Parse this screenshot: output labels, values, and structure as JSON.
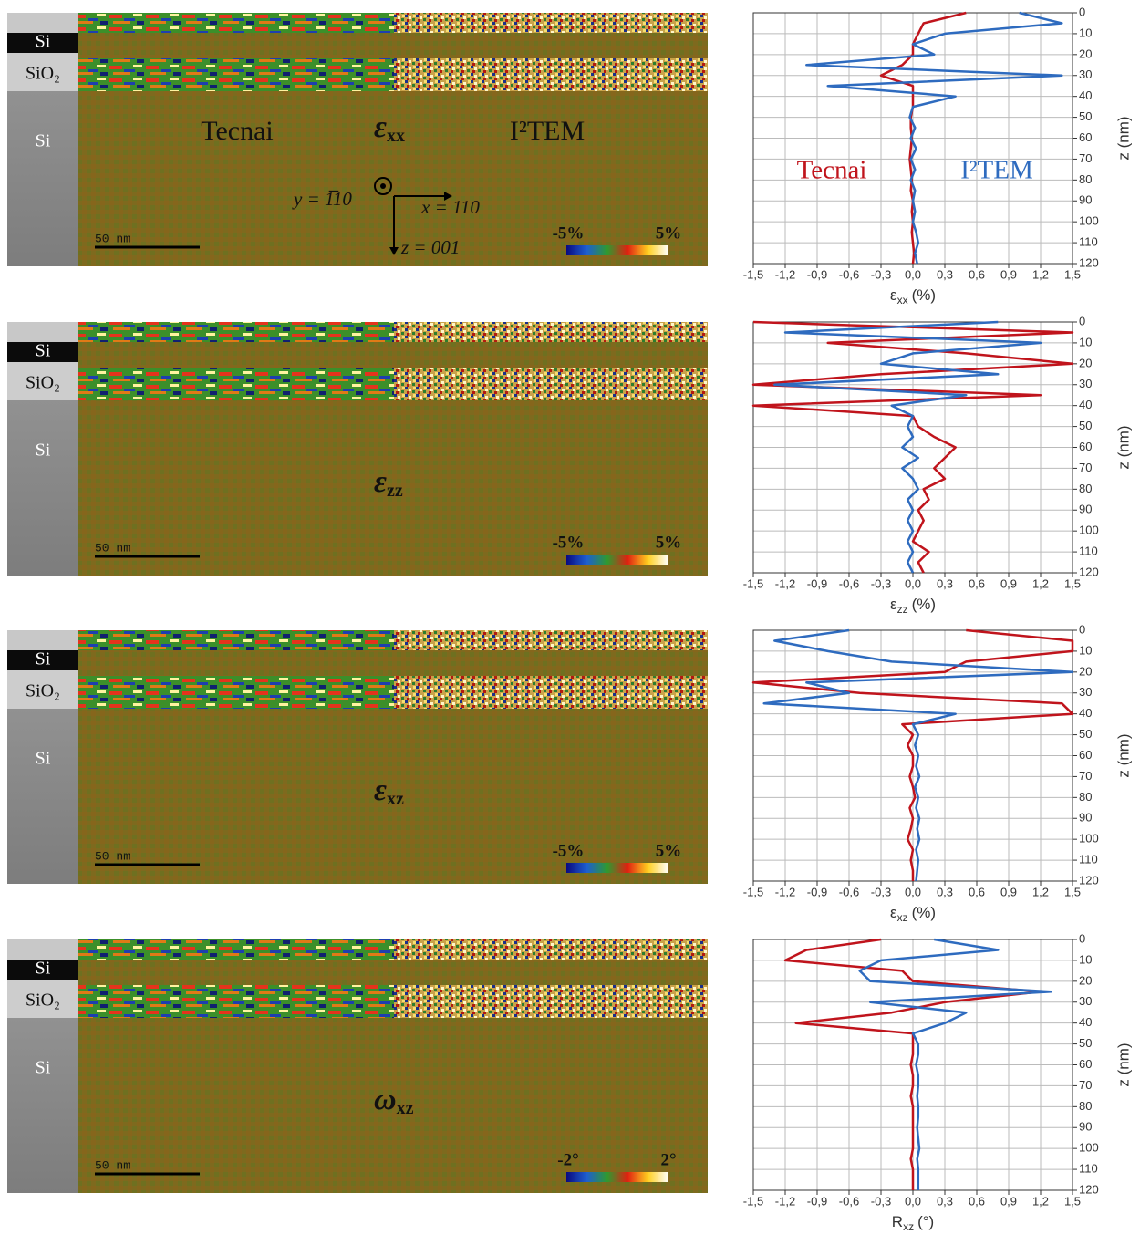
{
  "maps": [
    {
      "layers": [
        "Si",
        "SiO₂",
        "Si"
      ],
      "labels": [
        "Tecnai",
        "I²TEM"
      ],
      "symbol": "ε",
      "subscript": "xx",
      "scale_bar": "50 nm",
      "colorbar": [
        "-5%",
        "5%"
      ],
      "axes": [
        "y = 1̅10",
        "x = 110",
        "z = 001"
      ]
    },
    {
      "layers": [
        "Si",
        "SiO₂",
        "Si"
      ],
      "symbol": "ε",
      "subscript": "zz",
      "scale_bar": "50 nm",
      "colorbar": [
        "-5%",
        "5%"
      ]
    },
    {
      "layers": [
        "Si",
        "SiO₂",
        "Si"
      ],
      "symbol": "ε",
      "subscript": "xz",
      "scale_bar": "50 nm",
      "colorbar": [
        "-5%",
        "5%"
      ]
    },
    {
      "layers": [
        "Si",
        "SiO₂",
        "Si"
      ],
      "symbol": "ω",
      "subscript": "xz",
      "scale_bar": "50 nm",
      "colorbar": [
        "-2°",
        "2°"
      ]
    }
  ],
  "chart_data": [
    {
      "type": "line",
      "xlabel": [
        "ε",
        "xx",
        "(%)"
      ],
      "ylabel": "z (nm)",
      "grid": true,
      "yinvert": true,
      "xlim": [
        -1.5,
        1.5
      ],
      "xticks": [
        {
          "value": -1.5,
          "label": "-1,5"
        },
        {
          "value": -1.2,
          "label": "-1,2"
        },
        {
          "value": -0.9,
          "label": "-0,9"
        },
        {
          "value": -0.6,
          "label": "-0,6"
        },
        {
          "value": -0.3,
          "label": "-0,3"
        },
        {
          "value": 0,
          "label": "0,0"
        },
        {
          "value": 0.3,
          "label": "0,3"
        },
        {
          "value": 0.6,
          "label": "0,6"
        },
        {
          "value": 0.9,
          "label": "0,9"
        },
        {
          "value": 1.2,
          "label": "1,2"
        },
        {
          "value": 1.5,
          "label": "1,5"
        }
      ],
      "ylim": [
        0,
        120
      ],
      "yticks": [
        0,
        10,
        20,
        30,
        40,
        50,
        60,
        70,
        80,
        90,
        100,
        110,
        120
      ],
      "depth": [
        0,
        5,
        10,
        15,
        20,
        25,
        30,
        35,
        40,
        45,
        50,
        55,
        60,
        65,
        70,
        75,
        80,
        85,
        90,
        95,
        100,
        105,
        110,
        115,
        120
      ],
      "series": [
        {
          "name": "Tecnai",
          "color": "#c0141c",
          "values": [
            0.5,
            0.1,
            0.05,
            0.0,
            0.0,
            -0.1,
            -0.3,
            0.0,
            0.0,
            0.0,
            -0.02,
            -0.02,
            -0.01,
            -0.02,
            -0.03,
            -0.02,
            -0.01,
            -0.02,
            0.0,
            -0.01,
            0.0,
            -0.01,
            0.0,
            0.01,
            0.0
          ]
        },
        {
          "name": "I²TEM",
          "color": "#2e6bbf",
          "values": [
            1.0,
            1.4,
            0.3,
            0.0,
            0.2,
            -1.0,
            1.4,
            -0.8,
            0.4,
            0.0,
            -0.03,
            0.02,
            -0.02,
            0.03,
            -0.02,
            0.02,
            -0.02,
            0.02,
            0.0,
            0.02,
            0.0,
            0.03,
            0.05,
            0.02,
            0.04
          ]
        }
      ]
    },
    {
      "type": "line",
      "xlabel": [
        "ε",
        "zz",
        "(%)"
      ],
      "ylabel": "z (nm)",
      "grid": true,
      "yinvert": true,
      "xlim": [
        -1.5,
        1.5
      ],
      "xticks": [
        {
          "value": -1.5,
          "label": "-1,5"
        },
        {
          "value": -1.2,
          "label": "-1,2"
        },
        {
          "value": -0.9,
          "label": "-0,9"
        },
        {
          "value": -0.6,
          "label": "-0,6"
        },
        {
          "value": -0.3,
          "label": "-0,3"
        },
        {
          "value": 0,
          "label": "0,0"
        },
        {
          "value": 0.3,
          "label": "0,3"
        },
        {
          "value": 0.6,
          "label": "0,6"
        },
        {
          "value": 0.9,
          "label": "0,9"
        },
        {
          "value": 1.2,
          "label": "1,2"
        },
        {
          "value": 1.5,
          "label": "1,5"
        }
      ],
      "ylim": [
        0,
        120
      ],
      "yticks": [
        0,
        10,
        20,
        30,
        40,
        50,
        60,
        70,
        80,
        90,
        100,
        110,
        120
      ],
      "depth": [
        0,
        5,
        10,
        15,
        20,
        25,
        30,
        35,
        40,
        45,
        50,
        55,
        60,
        65,
        70,
        75,
        80,
        85,
        90,
        95,
        100,
        105,
        110,
        115,
        120
      ],
      "series": [
        {
          "color": "#c0141c",
          "values": [
            -1.5,
            1.5,
            -0.8,
            0.5,
            1.5,
            -0.3,
            -1.5,
            1.2,
            -1.5,
            0.0,
            0.05,
            0.2,
            0.4,
            0.3,
            0.2,
            0.3,
            0.1,
            0.15,
            0.05,
            0.1,
            0.05,
            0.0,
            0.15,
            0.05,
            0.1
          ]
        },
        {
          "color": "#2e6bbf",
          "values": [
            0.8,
            -1.2,
            1.2,
            0.0,
            -0.3,
            0.8,
            -1.3,
            0.5,
            -0.2,
            0.0,
            -0.05,
            0.0,
            -0.1,
            0.05,
            -0.1,
            0.0,
            0.05,
            -0.05,
            0.0,
            -0.05,
            0.0,
            -0.05,
            0.0,
            -0.05,
            0.0
          ]
        }
      ]
    },
    {
      "type": "line",
      "xlabel": [
        "ε",
        "xz",
        "(%)"
      ],
      "ylabel": "z (nm)",
      "grid": true,
      "yinvert": true,
      "xlim": [
        -1.5,
        1.5
      ],
      "xticks": [
        {
          "value": -1.5,
          "label": "-1,5"
        },
        {
          "value": -1.2,
          "label": "-1,2"
        },
        {
          "value": -0.9,
          "label": "-0,9"
        },
        {
          "value": -0.6,
          "label": "-0,6"
        },
        {
          "value": -0.3,
          "label": "-0,3"
        },
        {
          "value": 0,
          "label": "0,0"
        },
        {
          "value": 0.3,
          "label": "0,3"
        },
        {
          "value": 0.6,
          "label": "0,6"
        },
        {
          "value": 0.9,
          "label": "0,9"
        },
        {
          "value": 1.2,
          "label": "1,2"
        },
        {
          "value": 1.5,
          "label": "1,5"
        }
      ],
      "ylim": [
        0,
        120
      ],
      "yticks": [
        0,
        10,
        20,
        30,
        40,
        50,
        60,
        70,
        80,
        90,
        100,
        110,
        120
      ],
      "depth": [
        0,
        5,
        10,
        15,
        20,
        25,
        30,
        35,
        40,
        45,
        50,
        55,
        60,
        65,
        70,
        75,
        80,
        85,
        90,
        95,
        100,
        105,
        110,
        115,
        120
      ],
      "series": [
        {
          "color": "#c0141c",
          "values": [
            0.5,
            1.5,
            1.5,
            0.5,
            0.3,
            -1.5,
            -0.5,
            1.4,
            1.5,
            -0.1,
            0.0,
            -0.05,
            0.0,
            0.0,
            -0.03,
            0.0,
            0.02,
            -0.03,
            0.0,
            -0.02,
            -0.05,
            0.0,
            -0.02,
            0.0,
            0.0
          ]
        },
        {
          "color": "#2e6bbf",
          "values": [
            -0.6,
            -1.3,
            -0.8,
            -0.2,
            1.5,
            -1.0,
            -0.6,
            -1.4,
            0.4,
            0.0,
            0.05,
            0.02,
            0.05,
            0.03,
            0.06,
            0.02,
            0.05,
            0.03,
            0.06,
            0.04,
            0.06,
            0.03,
            0.05,
            0.04,
            0.03
          ]
        }
      ]
    },
    {
      "type": "line",
      "xlabel": [
        "R",
        "xz",
        "(°)"
      ],
      "ylabel": "z (nm)",
      "grid": true,
      "yinvert": true,
      "xlim": [
        -1.5,
        1.5
      ],
      "xticks": [
        {
          "value": -1.5,
          "label": "-1,5"
        },
        {
          "value": -1.2,
          "label": "-1,2"
        },
        {
          "value": -0.9,
          "label": "-0,9"
        },
        {
          "value": -0.6,
          "label": "-0,6"
        },
        {
          "value": -0.3,
          "label": "-0,3"
        },
        {
          "value": 0,
          "label": "0,0"
        },
        {
          "value": 0.3,
          "label": "0,3"
        },
        {
          "value": 0.6,
          "label": "0,6"
        },
        {
          "value": 0.9,
          "label": "0,9"
        },
        {
          "value": 1.2,
          "label": "1,2"
        },
        {
          "value": 1.5,
          "label": "1,5"
        }
      ],
      "ylim": [
        0,
        120
      ],
      "yticks": [
        0,
        10,
        20,
        30,
        40,
        50,
        60,
        70,
        80,
        90,
        100,
        110,
        120
      ],
      "depth": [
        0,
        5,
        10,
        15,
        20,
        25,
        30,
        35,
        40,
        45,
        50,
        55,
        60,
        65,
        70,
        75,
        80,
        85,
        90,
        95,
        100,
        105,
        110,
        115,
        120
      ],
      "series": [
        {
          "color": "#c0141c",
          "values": [
            -0.3,
            -1.0,
            -1.2,
            -0.1,
            0.0,
            1.2,
            0.3,
            -0.2,
            -1.1,
            0.0,
            0.0,
            0.0,
            -0.02,
            0.0,
            0.0,
            -0.02,
            0.0,
            0.0,
            0.0,
            0.0,
            0.0,
            -0.02,
            0.0,
            0.0,
            0.0
          ]
        },
        {
          "color": "#2e6bbf",
          "values": [
            0.2,
            0.8,
            -0.3,
            -0.5,
            -0.4,
            1.3,
            -0.4,
            0.5,
            0.3,
            0.0,
            0.05,
            0.05,
            0.03,
            0.05,
            0.05,
            0.04,
            0.05,
            0.05,
            0.04,
            0.05,
            0.06,
            0.04,
            0.05,
            0.05,
            0.05
          ]
        }
      ]
    }
  ]
}
